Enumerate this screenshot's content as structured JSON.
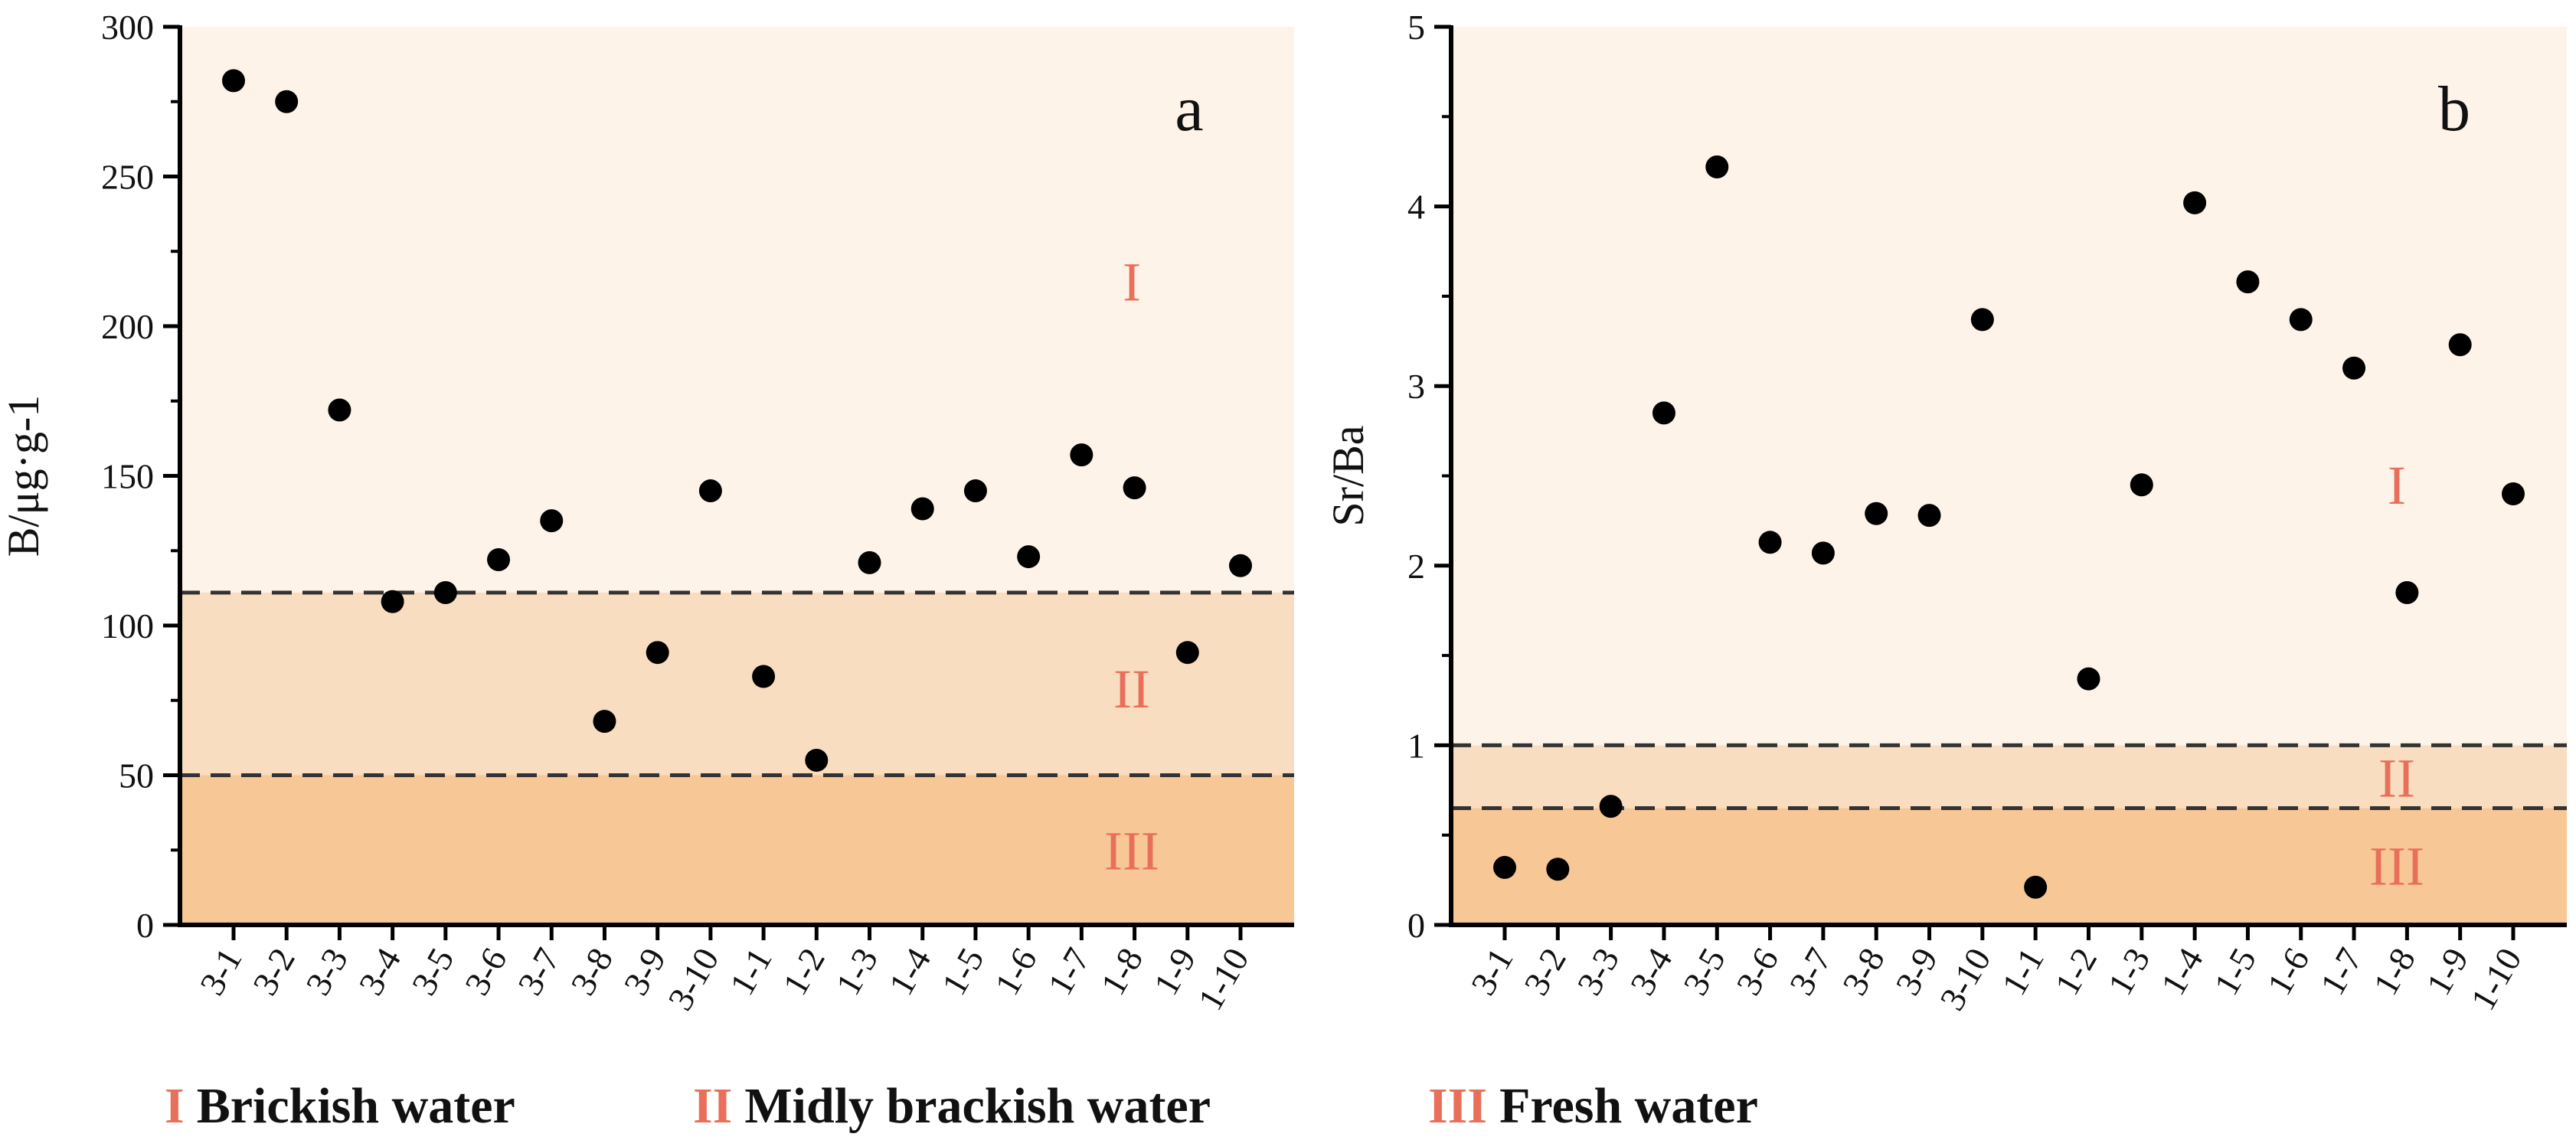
{
  "colors": {
    "zone_I": "#fdf3e8",
    "zone_II": "#f9ddc0",
    "zone_III": "#f8c796",
    "zone_label": "#e8705a",
    "marker": "#000000",
    "axis": "#000000",
    "threshold_line": "#333333"
  },
  "legend": {
    "items": [
      {
        "roman": "I",
        "label": "Brickish water"
      },
      {
        "roman": "II",
        "label": "Midly brackish water"
      },
      {
        "roman": "III",
        "label": "Fresh water"
      }
    ]
  },
  "chart_data": [
    {
      "type": "scatter",
      "panel": "a",
      "title": "",
      "xlabel": "",
      "ylabel": "B/μg·g-1",
      "ylim": [
        0,
        300
      ],
      "yticks": [
        0,
        50,
        100,
        150,
        200,
        250,
        300
      ],
      "categories": [
        "3-1",
        "3-2",
        "3-3",
        "3-4",
        "3-5",
        "3-6",
        "3-7",
        "3-8",
        "3-9",
        "3-10",
        "1-1",
        "1-2",
        "1-3",
        "1-4",
        "1-5",
        "1-6",
        "1-7",
        "1-8",
        "1-9",
        "1-10"
      ],
      "values": [
        282,
        275,
        172,
        108,
        111,
        122,
        135,
        68,
        91,
        145,
        83,
        55,
        121,
        139,
        145,
        123,
        157,
        146,
        91,
        120
      ],
      "thresholds": [
        111,
        50
      ],
      "zones": [
        {
          "label": "I",
          "from": 111,
          "to": 300,
          "label_value": 215
        },
        {
          "label": "II",
          "from": 50,
          "to": 111,
          "label_value": 79
        },
        {
          "label": "III",
          "from": 0,
          "to": 50,
          "label_value": 25
        }
      ],
      "legend": "bottom"
    },
    {
      "type": "scatter",
      "panel": "b",
      "title": "",
      "xlabel": "",
      "ylabel": "Sr/Ba",
      "ylim": [
        0,
        5
      ],
      "yticks": [
        0,
        1,
        2,
        3,
        4,
        5
      ],
      "categories": [
        "3-1",
        "3-2",
        "3-3",
        "3-4",
        "3-5",
        "3-6",
        "3-7",
        "3-8",
        "3-9",
        "3-10",
        "1-1",
        "1-2",
        "1-3",
        "1-4",
        "1-5",
        "1-6",
        "1-7",
        "1-8",
        "1-9",
        "1-10"
      ],
      "values": [
        0.32,
        0.31,
        0.66,
        2.85,
        4.22,
        2.13,
        2.07,
        2.29,
        2.28,
        3.37,
        0.21,
        1.37,
        2.45,
        4.02,
        3.58,
        3.37,
        3.1,
        1.85,
        3.23,
        2.4
      ],
      "thresholds": [
        1.0,
        0.65
      ],
      "zones": [
        {
          "label": "I",
          "from": 1.0,
          "to": 5,
          "label_value": 2.45
        },
        {
          "label": "II",
          "from": 0.65,
          "to": 1.0,
          "label_value": 0.82
        },
        {
          "label": "III",
          "from": 0,
          "to": 0.65,
          "label_value": 0.33
        }
      ],
      "legend": "bottom"
    }
  ]
}
